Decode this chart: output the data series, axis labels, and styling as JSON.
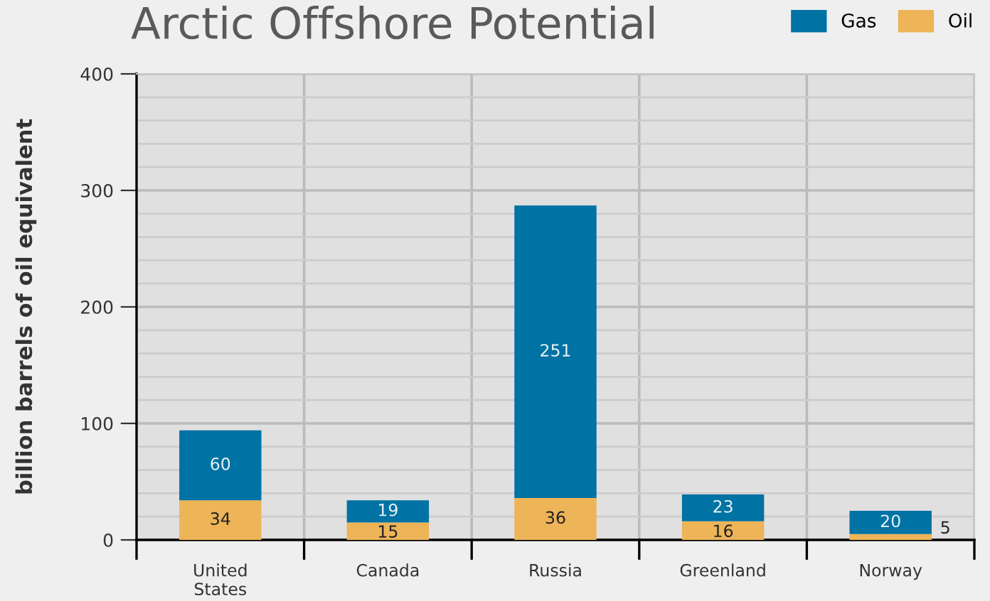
{
  "chart_data": {
    "type": "bar",
    "title": "Arctic Offshore Potential",
    "ylabel": "billion barrels of oil equivalent",
    "categories": [
      "United States",
      "Canada",
      "Russia",
      "Greenland",
      "Norway"
    ],
    "stacked": true,
    "series": [
      {
        "name": "Oil",
        "color": "#edb458",
        "values": [
          34,
          15,
          36,
          16,
          5
        ]
      },
      {
        "name": "Gas",
        "color": "#0072a3",
        "values": [
          60,
          19,
          251,
          23,
          20
        ]
      }
    ],
    "ylim": [
      0,
      400
    ],
    "yticks": [
      0,
      100,
      200,
      300,
      400
    ],
    "grid": true,
    "legend": "top right",
    "data_labels": true
  }
}
